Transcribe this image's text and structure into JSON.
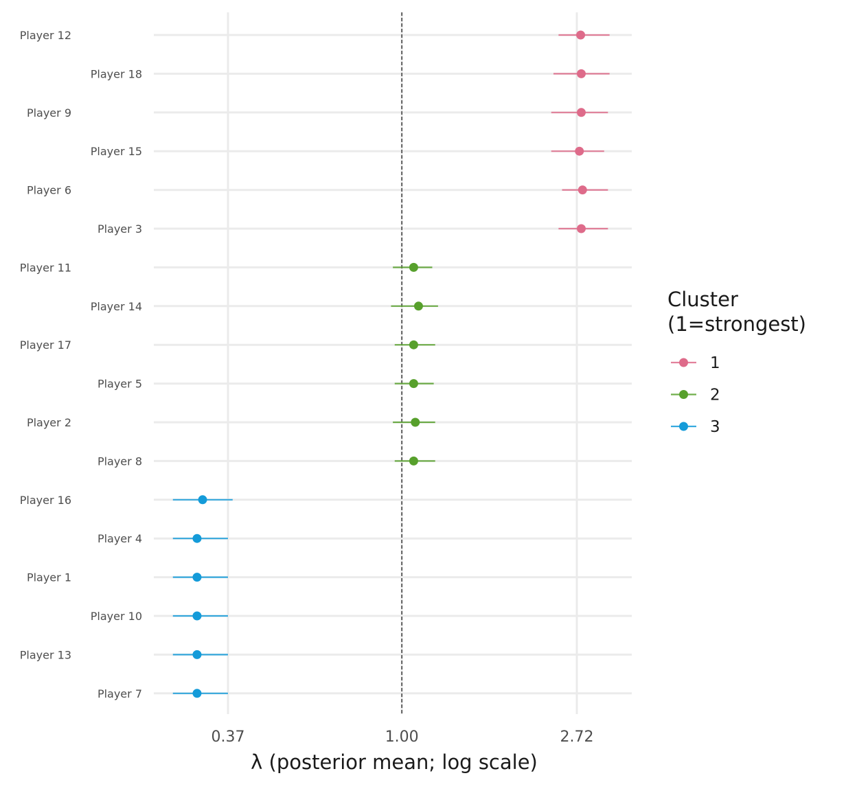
{
  "chart_data": {
    "type": "scatter",
    "subtype": "point-range (dot and interval) plot",
    "xlabel": "λ  (posterior mean; log scale)",
    "x_scale": "log",
    "x_ticks": [
      0.37,
      1.0,
      2.72
    ],
    "x_tick_labels": [
      "0.37",
      "1.00",
      "2.72"
    ],
    "xlim": [
      0.24,
      3.7
    ],
    "reference_line": {
      "x": 1.0,
      "style": "dashed"
    },
    "grid": true,
    "legend": {
      "title_lines": [
        "Cluster",
        "(1=strongest)"
      ],
      "position": "right",
      "entries": [
        {
          "label": "1",
          "color": "#DE6B8A"
        },
        {
          "label": "2",
          "color": "#57A02C"
        },
        {
          "label": "3",
          "color": "#149BD9"
        }
      ]
    },
    "rows": [
      {
        "player": "Player 12",
        "cluster": 1,
        "mean": 2.78,
        "lo": 2.45,
        "hi": 3.28
      },
      {
        "player": "Player 18",
        "cluster": 1,
        "mean": 2.79,
        "lo": 2.38,
        "hi": 3.28
      },
      {
        "player": "Player 9",
        "cluster": 1,
        "mean": 2.79,
        "lo": 2.35,
        "hi": 3.25
      },
      {
        "player": "Player 15",
        "cluster": 1,
        "mean": 2.76,
        "lo": 2.35,
        "hi": 3.18
      },
      {
        "player": "Player 6",
        "cluster": 1,
        "mean": 2.81,
        "lo": 2.5,
        "hi": 3.25
      },
      {
        "player": "Player 3",
        "cluster": 1,
        "mean": 2.79,
        "lo": 2.45,
        "hi": 3.25
      },
      {
        "player": "Player 11",
        "cluster": 2,
        "mean": 1.07,
        "lo": 0.95,
        "hi": 1.19
      },
      {
        "player": "Player 14",
        "cluster": 2,
        "mean": 1.1,
        "lo": 0.94,
        "hi": 1.23
      },
      {
        "player": "Player 17",
        "cluster": 2,
        "mean": 1.07,
        "lo": 0.96,
        "hi": 1.21
      },
      {
        "player": "Player 5",
        "cluster": 2,
        "mean": 1.07,
        "lo": 0.96,
        "hi": 1.2
      },
      {
        "player": "Player 2",
        "cluster": 2,
        "mean": 1.08,
        "lo": 0.95,
        "hi": 1.21
      },
      {
        "player": "Player 8",
        "cluster": 2,
        "mean": 1.07,
        "lo": 0.96,
        "hi": 1.21
      },
      {
        "player": "Player 16",
        "cluster": 3,
        "mean": 0.32,
        "lo": 0.27,
        "hi": 0.38
      },
      {
        "player": "Player 4",
        "cluster": 3,
        "mean": 0.31,
        "lo": 0.27,
        "hi": 0.37
      },
      {
        "player": "Player 1",
        "cluster": 3,
        "mean": 0.31,
        "lo": 0.27,
        "hi": 0.37
      },
      {
        "player": "Player 10",
        "cluster": 3,
        "mean": 0.31,
        "lo": 0.27,
        "hi": 0.37
      },
      {
        "player": "Player 13",
        "cluster": 3,
        "mean": 0.31,
        "lo": 0.27,
        "hi": 0.37
      },
      {
        "player": "Player 7",
        "cluster": 3,
        "mean": 0.31,
        "lo": 0.27,
        "hi": 0.37
      }
    ]
  }
}
